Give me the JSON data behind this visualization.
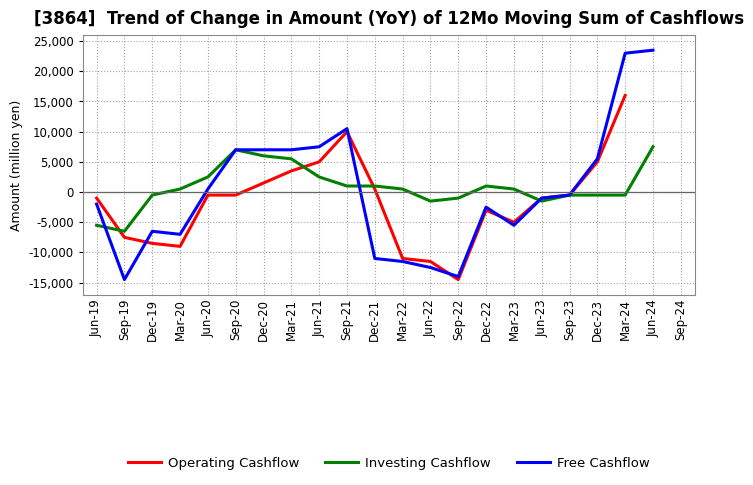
{
  "title": "[3864]  Trend of Change in Amount (YoY) of 12Mo Moving Sum of Cashflows",
  "ylabel": "Amount (million yen)",
  "xlabels": [
    "Jun-19",
    "Sep-19",
    "Dec-19",
    "Mar-20",
    "Jun-20",
    "Sep-20",
    "Dec-20",
    "Mar-21",
    "Jun-21",
    "Sep-21",
    "Dec-21",
    "Mar-22",
    "Jun-22",
    "Sep-22",
    "Dec-22",
    "Mar-23",
    "Jun-23",
    "Sep-23",
    "Dec-23",
    "Mar-24",
    "Jun-24",
    "Sep-24"
  ],
  "operating": [
    -1000,
    -7500,
    -8500,
    -9000,
    -500,
    -500,
    1500,
    3500,
    5000,
    10000,
    500,
    -11000,
    -11500,
    -14500,
    -3000,
    -5000,
    -1000,
    -500,
    5000,
    16000,
    null,
    null
  ],
  "investing": [
    -5500,
    -6500,
    -500,
    500,
    2500,
    7000,
    6000,
    5500,
    2500,
    1000,
    1000,
    500,
    -1500,
    -1000,
    1000,
    500,
    -1500,
    -500,
    -500,
    -500,
    7500,
    null
  ],
  "free": [
    -2000,
    -14500,
    -6500,
    -7000,
    500,
    7000,
    7000,
    7000,
    7500,
    10500,
    -11000,
    -11500,
    -12500,
    -14000,
    -2500,
    -5500,
    -1000,
    -500,
    5500,
    23000,
    23500,
    null
  ],
  "ylim": [
    -17000,
    26000
  ],
  "yticks": [
    -15000,
    -10000,
    -5000,
    0,
    5000,
    10000,
    15000,
    20000,
    25000
  ],
  "operating_color": "#ff0000",
  "investing_color": "#008000",
  "free_color": "#0000ff",
  "bg_color": "#ffffff",
  "grid_color": "#999999",
  "linewidth": 2.2,
  "title_fontsize": 12,
  "label_fontsize": 9,
  "tick_fontsize": 8.5,
  "legend_fontsize": 9.5
}
